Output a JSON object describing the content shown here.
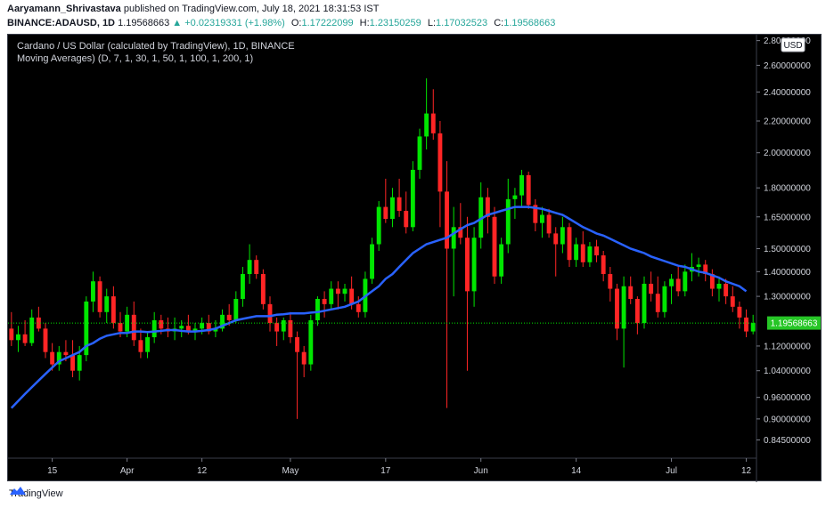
{
  "header": {
    "author": "Aaryamann_Shrivastava",
    "published": "published on TradingView.com, July 18, 2021 18:31:53 IST",
    "symbol": "BINANCE:ADAUSD, 1D",
    "last": "1.19568663",
    "change_arrow": "▲",
    "change": "+0.02319331 (+1.98%)",
    "o_label": "O:",
    "o": "1.17222099",
    "h_label": "H:",
    "h": "1.23150259",
    "l_label": "L:",
    "l": "1.17032523",
    "c_label": "C:",
    "c": "1.19568663"
  },
  "footer": {
    "logo_text": "TradingView"
  },
  "colors": {
    "up": "#00e600",
    "down": "#ff2525",
    "ma": "#2962ff",
    "background": "#000000",
    "price_tag": "#26c626"
  },
  "chart_data": {
    "type": "candlestick",
    "title": "Cardano / US Dollar (calculated by TradingView), 1D, BINANCE",
    "indicator_label": "Moving Averages) (D, 7, 1, 30, 1, 50, 1, 100, 1, 200, 1)",
    "y_axis_labels": [
      "2.80000000",
      "2.60000000",
      "2.40000000",
      "2.20000000",
      "2.00000000",
      "1.80000000",
      "1.65000000",
      "1.50000000",
      "1.40000000",
      "1.30000000",
      "1.12000000",
      "1.04000000",
      "0.96000000",
      "0.90000000",
      "0.84500000"
    ],
    "x_axis_labels": [
      "15",
      "Apr",
      "12",
      "May",
      "17",
      "Jun",
      "14",
      "Jul",
      "12"
    ],
    "currency_label": "USD",
    "last_price_label": "1.19568663",
    "ylim": [
      0.8,
      2.85
    ],
    "scale": "log",
    "series": [
      {
        "name": "ADAUSD",
        "type": "candlestick",
        "candles": [
          [
            1.18,
            1.24,
            1.12,
            1.14
          ],
          [
            1.14,
            1.19,
            1.1,
            1.16
          ],
          [
            1.16,
            1.21,
            1.12,
            1.13
          ],
          [
            1.13,
            1.25,
            1.12,
            1.22
          ],
          [
            1.22,
            1.26,
            1.17,
            1.18
          ],
          [
            1.18,
            1.2,
            1.08,
            1.1
          ],
          [
            1.1,
            1.13,
            1.04,
            1.06
          ],
          [
            1.06,
            1.12,
            1.04,
            1.1
          ],
          [
            1.1,
            1.14,
            1.07,
            1.09
          ],
          [
            1.09,
            1.14,
            1.02,
            1.04
          ],
          [
            1.04,
            1.12,
            1.01,
            1.09
          ],
          [
            1.09,
            1.3,
            1.07,
            1.28
          ],
          [
            1.28,
            1.4,
            1.24,
            1.36
          ],
          [
            1.36,
            1.38,
            1.22,
            1.24
          ],
          [
            1.24,
            1.33,
            1.2,
            1.3
          ],
          [
            1.3,
            1.34,
            1.18,
            1.2
          ],
          [
            1.2,
            1.24,
            1.15,
            1.17
          ],
          [
            1.17,
            1.26,
            1.15,
            1.23
          ],
          [
            1.23,
            1.28,
            1.12,
            1.14
          ],
          [
            1.14,
            1.18,
            1.08,
            1.1
          ],
          [
            1.1,
            1.17,
            1.08,
            1.15
          ],
          [
            1.15,
            1.24,
            1.13,
            1.21
          ],
          [
            1.21,
            1.23,
            1.16,
            1.18
          ],
          [
            1.18,
            1.22,
            1.15,
            1.17
          ],
          [
            1.17,
            1.22,
            1.14,
            1.18
          ],
          [
            1.18,
            1.21,
            1.15,
            1.19
          ],
          [
            1.19,
            1.23,
            1.16,
            1.17
          ],
          [
            1.17,
            1.2,
            1.14,
            1.18
          ],
          [
            1.18,
            1.22,
            1.16,
            1.2
          ],
          [
            1.2,
            1.23,
            1.16,
            1.17
          ],
          [
            1.17,
            1.21,
            1.15,
            1.18
          ],
          [
            1.18,
            1.25,
            1.17,
            1.23
          ],
          [
            1.23,
            1.27,
            1.19,
            1.21
          ],
          [
            1.21,
            1.32,
            1.2,
            1.29
          ],
          [
            1.29,
            1.42,
            1.26,
            1.39
          ],
          [
            1.39,
            1.52,
            1.35,
            1.45
          ],
          [
            1.45,
            1.47,
            1.37,
            1.39
          ],
          [
            1.39,
            1.41,
            1.25,
            1.27
          ],
          [
            1.27,
            1.3,
            1.17,
            1.2
          ],
          [
            1.2,
            1.22,
            1.12,
            1.17
          ],
          [
            1.17,
            1.22,
            1.14,
            1.21
          ],
          [
            1.21,
            1.24,
            1.13,
            1.15
          ],
          [
            1.15,
            1.17,
            0.9,
            1.1
          ],
          [
            1.1,
            1.12,
            1.02,
            1.06
          ],
          [
            1.06,
            1.23,
            1.04,
            1.21
          ],
          [
            1.21,
            1.3,
            1.19,
            1.29
          ],
          [
            1.29,
            1.32,
            1.22,
            1.27
          ],
          [
            1.27,
            1.36,
            1.25,
            1.33
          ],
          [
            1.33,
            1.36,
            1.25,
            1.31
          ],
          [
            1.31,
            1.35,
            1.28,
            1.33
          ],
          [
            1.33,
            1.38,
            1.25,
            1.27
          ],
          [
            1.27,
            1.3,
            1.22,
            1.24
          ],
          [
            1.24,
            1.4,
            1.22,
            1.37
          ],
          [
            1.37,
            1.55,
            1.35,
            1.52
          ],
          [
            1.52,
            1.73,
            1.49,
            1.7
          ],
          [
            1.7,
            1.85,
            1.62,
            1.64
          ],
          [
            1.64,
            1.8,
            1.6,
            1.75
          ],
          [
            1.75,
            1.85,
            1.65,
            1.68
          ],
          [
            1.68,
            1.78,
            1.57,
            1.6
          ],
          [
            1.6,
            1.95,
            1.58,
            1.9
          ],
          [
            1.9,
            2.15,
            1.85,
            2.1
          ],
          [
            2.1,
            2.5,
            2.02,
            2.25
          ],
          [
            2.25,
            2.42,
            2.08,
            2.12
          ],
          [
            2.12,
            2.2,
            1.6,
            1.78
          ],
          [
            1.78,
            1.95,
            0.93,
            1.5
          ],
          [
            1.5,
            1.7,
            1.3,
            1.6
          ],
          [
            1.6,
            1.72,
            1.52,
            1.55
          ],
          [
            1.55,
            1.65,
            1.04,
            1.32
          ],
          [
            1.32,
            1.6,
            1.26,
            1.55
          ],
          [
            1.55,
            1.83,
            1.5,
            1.75
          ],
          [
            1.75,
            1.8,
            1.57,
            1.65
          ],
          [
            1.65,
            1.7,
            1.35,
            1.38
          ],
          [
            1.38,
            1.55,
            1.35,
            1.52
          ],
          [
            1.52,
            1.85,
            1.48,
            1.74
          ],
          [
            1.74,
            1.8,
            1.64,
            1.76
          ],
          [
            1.76,
            1.9,
            1.7,
            1.87
          ],
          [
            1.87,
            1.89,
            1.69,
            1.71
          ],
          [
            1.71,
            1.74,
            1.58,
            1.62
          ],
          [
            1.62,
            1.7,
            1.55,
            1.66
          ],
          [
            1.66,
            1.69,
            1.55,
            1.57
          ],
          [
            1.57,
            1.6,
            1.38,
            1.52
          ],
          [
            1.52,
            1.65,
            1.48,
            1.6
          ],
          [
            1.6,
            1.62,
            1.42,
            1.45
          ],
          [
            1.45,
            1.55,
            1.42,
            1.52
          ],
          [
            1.52,
            1.58,
            1.42,
            1.44
          ],
          [
            1.44,
            1.53,
            1.42,
            1.51
          ],
          [
            1.51,
            1.54,
            1.44,
            1.47
          ],
          [
            1.47,
            1.49,
            1.36,
            1.39
          ],
          [
            1.39,
            1.42,
            1.28,
            1.33
          ],
          [
            1.33,
            1.35,
            1.14,
            1.18
          ],
          [
            1.18,
            1.38,
            1.05,
            1.34
          ],
          [
            1.34,
            1.38,
            1.27,
            1.29
          ],
          [
            1.29,
            1.3,
            1.16,
            1.2
          ],
          [
            1.2,
            1.38,
            1.18,
            1.35
          ],
          [
            1.35,
            1.4,
            1.28,
            1.31
          ],
          [
            1.31,
            1.38,
            1.22,
            1.24
          ],
          [
            1.24,
            1.36,
            1.22,
            1.34
          ],
          [
            1.34,
            1.39,
            1.27,
            1.37
          ],
          [
            1.37,
            1.42,
            1.3,
            1.32
          ],
          [
            1.32,
            1.43,
            1.3,
            1.4
          ],
          [
            1.4,
            1.48,
            1.36,
            1.42
          ],
          [
            1.42,
            1.46,
            1.38,
            1.43
          ],
          [
            1.43,
            1.45,
            1.36,
            1.39
          ],
          [
            1.39,
            1.41,
            1.3,
            1.33
          ],
          [
            1.33,
            1.38,
            1.28,
            1.35
          ],
          [
            1.35,
            1.37,
            1.27,
            1.3
          ],
          [
            1.3,
            1.34,
            1.24,
            1.26
          ],
          [
            1.26,
            1.28,
            1.18,
            1.22
          ],
          [
            1.22,
            1.25,
            1.15,
            1.17
          ],
          [
            1.17,
            1.23,
            1.16,
            1.2
          ]
        ]
      },
      {
        "name": "MA",
        "type": "line",
        "values": [
          0.93,
          0.95,
          0.97,
          0.99,
          1.01,
          1.03,
          1.05,
          1.07,
          1.08,
          1.09,
          1.1,
          1.12,
          1.13,
          1.145,
          1.155,
          1.16,
          1.165,
          1.165,
          1.17,
          1.17,
          1.168,
          1.17,
          1.172,
          1.175,
          1.175,
          1.172,
          1.17,
          1.17,
          1.172,
          1.175,
          1.18,
          1.19,
          1.2,
          1.21,
          1.215,
          1.22,
          1.225,
          1.225,
          1.225,
          1.23,
          1.232,
          1.235,
          1.235,
          1.235,
          1.238,
          1.24,
          1.245,
          1.25,
          1.255,
          1.26,
          1.27,
          1.28,
          1.3,
          1.32,
          1.34,
          1.37,
          1.39,
          1.42,
          1.45,
          1.48,
          1.5,
          1.52,
          1.53,
          1.54,
          1.55,
          1.57,
          1.59,
          1.61,
          1.62,
          1.64,
          1.66,
          1.67,
          1.68,
          1.69,
          1.7,
          1.7,
          1.7,
          1.695,
          1.69,
          1.68,
          1.67,
          1.66,
          1.64,
          1.62,
          1.6,
          1.585,
          1.57,
          1.56,
          1.545,
          1.53,
          1.515,
          1.5,
          1.49,
          1.48,
          1.465,
          1.455,
          1.445,
          1.435,
          1.425,
          1.42,
          1.41,
          1.4,
          1.395,
          1.385,
          1.375,
          1.36,
          1.35,
          1.34,
          1.32
        ]
      }
    ]
  }
}
